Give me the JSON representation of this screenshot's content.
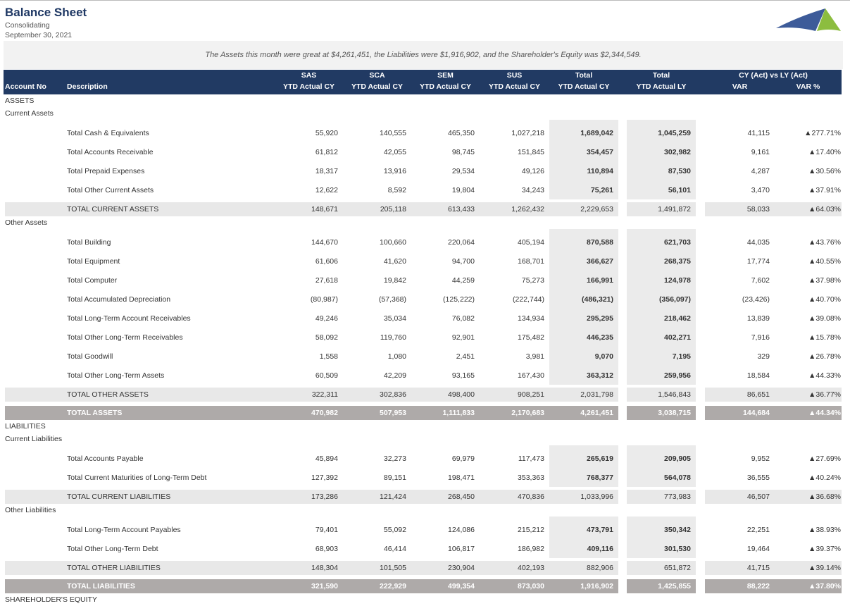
{
  "header": {
    "title": "Balance Sheet",
    "subtitle": "Consolidating",
    "date": "September 30, 2021"
  },
  "summary": "The Assets this month were great at $4,261,451, the Liabilities were $1,916,902, and the Shareholder's Equity was $2,344,549.",
  "colors": {
    "header_bg": "#213a63",
    "title": "#1f3864",
    "logo_blue": "#3d5b99",
    "logo_green": "#8cbd3f",
    "total_row": "#aeaaa9",
    "subtotal_row": "#e8e8e8"
  },
  "columns": {
    "account_no": "Account No",
    "description": "Description",
    "entities": [
      {
        "top": "SAS",
        "bottom": "YTD Actual CY"
      },
      {
        "top": "SCA",
        "bottom": "YTD Actual CY"
      },
      {
        "top": "SEM",
        "bottom": "YTD Actual CY"
      },
      {
        "top": "SUS",
        "bottom": "YTD Actual CY"
      },
      {
        "top": "Total",
        "bottom": "YTD Actual CY"
      },
      {
        "top": "Total",
        "bottom": "YTD Actual LY"
      }
    ],
    "comparison": "CY (Act) vs LY (Act)",
    "var": "VAR",
    "var_pct": "VAR %"
  },
  "body": [
    {
      "type": "label",
      "text": "ASSETS"
    },
    {
      "type": "label",
      "text": "Current Assets"
    },
    {
      "type": "group",
      "rows": [
        {
          "desc": "Total Cash & Equivalents",
          "v": [
            "55,920",
            "140,555",
            "465,350",
            "1,027,218",
            "1,689,042",
            "1,045,259",
            "41,115",
            "▲277.71%"
          ]
        },
        {
          "desc": "Total Accounts Receivable",
          "v": [
            "61,812",
            "42,055",
            "98,745",
            "151,845",
            "354,457",
            "302,982",
            "9,161",
            "▲17.40%"
          ]
        },
        {
          "desc": "Total Prepaid Expenses",
          "v": [
            "18,317",
            "13,916",
            "29,534",
            "49,126",
            "110,894",
            "87,530",
            "4,287",
            "▲30.56%"
          ]
        },
        {
          "desc": "Total Other Current Assets",
          "v": [
            "12,622",
            "8,592",
            "19,804",
            "34,243",
            "75,261",
            "56,101",
            "3,470",
            "▲37.91%"
          ]
        }
      ]
    },
    {
      "type": "subtotal",
      "desc": "TOTAL CURRENT ASSETS",
      "v": [
        "148,671",
        "205,118",
        "613,433",
        "1,262,432",
        "2,229,653",
        "1,491,872",
        "58,033",
        "▲64.03%"
      ]
    },
    {
      "type": "label",
      "text": "Other Assets"
    },
    {
      "type": "group",
      "rows": [
        {
          "desc": "Total Building",
          "v": [
            "144,670",
            "100,660",
            "220,064",
            "405,194",
            "870,588",
            "621,703",
            "44,035",
            "▲43.76%"
          ]
        },
        {
          "desc": "Total Equipment",
          "v": [
            "61,606",
            "41,620",
            "94,700",
            "168,701",
            "366,627",
            "268,375",
            "17,774",
            "▲40.55%"
          ]
        },
        {
          "desc": "Total Computer",
          "v": [
            "27,618",
            "19,842",
            "44,259",
            "75,273",
            "166,991",
            "124,978",
            "7,602",
            "▲37.98%"
          ]
        },
        {
          "desc": "Total Accumulated Depreciation",
          "v": [
            "(80,987)",
            "(57,368)",
            "(125,222)",
            "(222,744)",
            "(486,321)",
            "(356,097)",
            "(23,426)",
            "▲40.70%"
          ]
        },
        {
          "desc": "Total Long-Term Account Receivables",
          "v": [
            "49,246",
            "35,034",
            "76,082",
            "134,934",
            "295,295",
            "218,462",
            "13,839",
            "▲39.08%"
          ]
        },
        {
          "desc": "Total Other Long-Term Receivables",
          "v": [
            "58,092",
            "119,760",
            "92,901",
            "175,482",
            "446,235",
            "402,271",
            "7,916",
            "▲15.78%"
          ]
        },
        {
          "desc": "Total Goodwill",
          "v": [
            "1,558",
            "1,080",
            "2,451",
            "3,981",
            "9,070",
            "7,195",
            "329",
            "▲26.78%"
          ]
        },
        {
          "desc": "Total Other Long-Term Assets",
          "v": [
            "60,509",
            "42,209",
            "93,165",
            "167,430",
            "363,312",
            "259,956",
            "18,584",
            "▲44.33%"
          ]
        }
      ]
    },
    {
      "type": "subtotal",
      "desc": "TOTAL OTHER ASSETS",
      "v": [
        "322,311",
        "302,836",
        "498,400",
        "908,251",
        "2,031,798",
        "1,546,843",
        "86,651",
        "▲36.77%"
      ]
    },
    {
      "type": "total",
      "desc": "TOTAL ASSETS",
      "v": [
        "470,982",
        "507,953",
        "1,111,833",
        "2,170,683",
        "4,261,451",
        "3,038,715",
        "144,684",
        "▲44.34%"
      ]
    },
    {
      "type": "label",
      "text": "LIABILITIES"
    },
    {
      "type": "label",
      "text": "Current Liabilities"
    },
    {
      "type": "group",
      "rows": [
        {
          "desc": "Total Accounts Payable",
          "v": [
            "45,894",
            "32,273",
            "69,979",
            "117,473",
            "265,619",
            "209,905",
            "9,952",
            "▲27.69%"
          ]
        },
        {
          "desc": "Total Current Maturities of Long-Term Debt",
          "v": [
            "127,392",
            "89,151",
            "198,471",
            "353,363",
            "768,377",
            "564,078",
            "36,555",
            "▲40.24%"
          ]
        }
      ]
    },
    {
      "type": "subtotal",
      "desc": "TOTAL CURRENT LIABILITIES",
      "v": [
        "173,286",
        "121,424",
        "268,450",
        "470,836",
        "1,033,996",
        "773,983",
        "46,507",
        "▲36.68%"
      ]
    },
    {
      "type": "label",
      "text": "Other Liabilities"
    },
    {
      "type": "group",
      "rows": [
        {
          "desc": "Total Long-Term Account Payables",
          "v": [
            "79,401",
            "55,092",
            "124,086",
            "215,212",
            "473,791",
            "350,342",
            "22,251",
            "▲38.93%"
          ]
        },
        {
          "desc": "Total Other Long-Term Debt",
          "v": [
            "68,903",
            "46,414",
            "106,817",
            "186,982",
            "409,116",
            "301,530",
            "19,464",
            "▲39.37%"
          ]
        }
      ]
    },
    {
      "type": "subtotal",
      "desc": "TOTAL OTHER LIABILITIES",
      "v": [
        "148,304",
        "101,505",
        "230,904",
        "402,193",
        "882,906",
        "651,872",
        "41,715",
        "▲39.14%"
      ]
    },
    {
      "type": "total",
      "desc": "TOTAL LIABILITIES",
      "v": [
        "321,590",
        "222,929",
        "499,354",
        "873,030",
        "1,916,902",
        "1,425,855",
        "88,222",
        "▲37.80%"
      ]
    },
    {
      "type": "label",
      "text": "SHAREHOLDER'S EQUITY"
    }
  ]
}
